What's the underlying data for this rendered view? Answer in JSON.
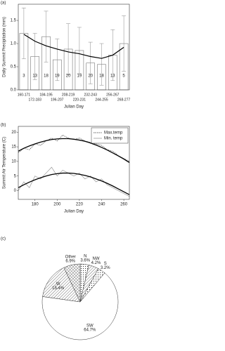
{
  "chart_data": [
    {
      "type": "bar",
      "label": "(a)",
      "y_label": "Daily Summit Precipitation (mm)",
      "x_label": "Julian Day",
      "categories": [
        "160-171",
        "172-183",
        "184-195",
        "196-207",
        "208-219",
        "220-231",
        "232-243",
        "244-255",
        "256-267",
        "268-277"
      ],
      "values": [
        1.22,
        0.72,
        1.15,
        0.65,
        0.88,
        0.85,
        0.58,
        0.55,
        0.75,
        1.0
      ],
      "errors": [
        0.55,
        0.5,
        0.55,
        0.45,
        0.55,
        0.5,
        0.45,
        0.45,
        0.55,
        0.6
      ],
      "trend_values": [
        1.2,
        1.05,
        0.95,
        0.88,
        0.82,
        0.78,
        0.72,
        0.68,
        0.75,
        0.92
      ],
      "counts": [
        3,
        13,
        18,
        19,
        20,
        19,
        20,
        18,
        13,
        5
      ],
      "color": "#ffffff",
      "ylim": [
        0,
        1.85
      ],
      "yticks": [
        {
          "value": 0,
          "label": "0.0"
        },
        0.5,
        {
          "value": 1,
          "label": "1.0"
        },
        1.5
      ]
    },
    {
      "type": "line",
      "label": "(b)",
      "y_label": "Summit Air Temperature (C)",
      "x_label": "Julian Day",
      "x": [
        165,
        170,
        175,
        180,
        185,
        190,
        195,
        200,
        205,
        210,
        215,
        220,
        225,
        230,
        235,
        240,
        245,
        250,
        255,
        260,
        265
      ],
      "series": [
        {
          "name": "Max.temp",
          "color": "#333333",
          "dashed": true,
          "values": [
            13,
            14.5,
            14,
            16,
            15.5,
            17,
            18,
            17,
            19,
            18,
            17.5,
            18,
            17,
            16.5,
            16,
            15.5,
            14,
            13.5,
            12,
            11,
            10
          ]
        },
        {
          "name": "Min. temp",
          "color": "#999999",
          "dashed": false,
          "values": [
            0,
            3,
            1,
            5,
            4,
            6,
            8,
            5,
            7,
            6,
            5,
            6,
            4,
            5,
            3,
            4,
            2,
            1,
            0,
            -1,
            -2
          ]
        }
      ],
      "fits": [
        {
          "color": "#000000",
          "values": [
            13.5,
            14.5,
            15.3,
            16,
            16.6,
            17.1,
            17.5,
            17.7,
            17.8,
            17.8,
            17.6,
            17.3,
            16.9,
            16.3,
            15.6,
            14.8,
            13.9,
            12.9,
            11.9,
            10.8,
            9.6
          ]
        },
        {
          "color": "#000000",
          "values": [
            1,
            2,
            2.9,
            3.7,
            4.4,
            5,
            5.5,
            5.8,
            6,
            6,
            5.9,
            5.6,
            5.2,
            4.7,
            4,
            3.3,
            2.5,
            1.6,
            0.6,
            -0.4,
            -1.4
          ]
        }
      ],
      "xlim": [
        165,
        265
      ],
      "xticks": [
        180,
        200,
        220,
        240,
        260
      ],
      "ylim": [
        -3,
        22
      ],
      "yticks": [
        0,
        5,
        10,
        15,
        20
      ],
      "legend": "upper right"
    },
    {
      "type": "pie",
      "label": "(c)",
      "categories": [
        "N",
        "NW",
        "S",
        "SW",
        "W",
        "Other"
      ],
      "values": [
        3.6,
        4.2,
        3.2,
        64.7,
        15.4,
        6.9
      ],
      "value_labels": [
        "3.6%",
        "4.2%",
        "3.2%",
        "64.7%",
        "15.4%",
        "6.9%"
      ],
      "patterns": [
        "dots",
        "hatch",
        "dots",
        "none",
        "hatch",
        "cross"
      ]
    }
  ]
}
